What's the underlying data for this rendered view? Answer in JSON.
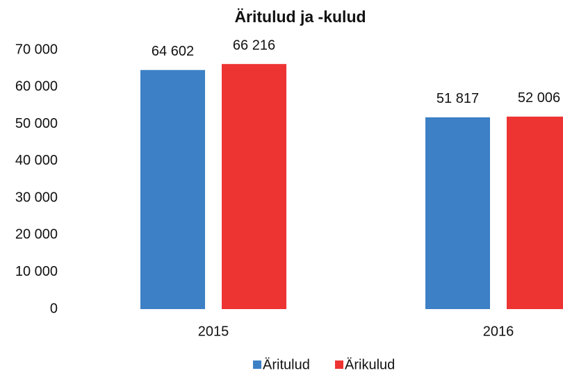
{
  "chart_data": {
    "type": "bar",
    "title": "Äritulud ja -kulud",
    "categories": [
      "2015",
      "2016"
    ],
    "series": [
      {
        "name": "Äritulud",
        "color": "#3d80c6",
        "values": [
          64602,
          51817
        ],
        "value_labels": [
          "64 602",
          "51 817"
        ]
      },
      {
        "name": "Ärikulud",
        "color": "#ee3333",
        "values": [
          66216,
          52006
        ],
        "value_labels": [
          "66 216",
          "52 006"
        ]
      }
    ],
    "ylim": [
      0,
      70000
    ],
    "yticks": [
      0,
      {
        "value": 10000,
        "label": "10 000"
      },
      {
        "value": 20000,
        "label": "20 000"
      },
      {
        "value": 30000,
        "label": "30 000"
      },
      {
        "value": 40000,
        "label": "40 000"
      },
      {
        "value": 50000,
        "label": "50 000"
      },
      {
        "value": 60000,
        "label": "60 000"
      },
      {
        "value": 70000,
        "label": "70 000"
      }
    ],
    "grid": false,
    "legend": "bottom"
  }
}
